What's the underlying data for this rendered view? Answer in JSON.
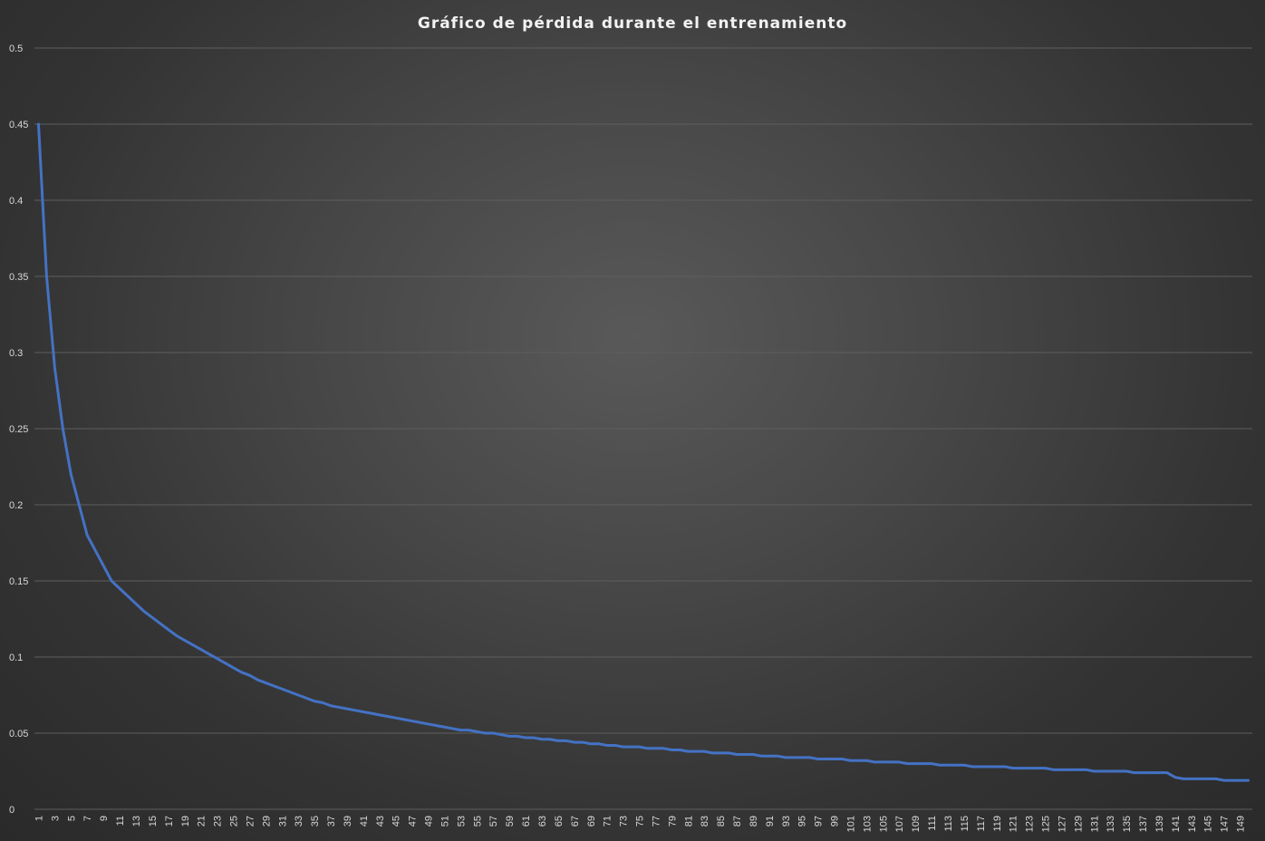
{
  "colors": {
    "series": "#4472c4",
    "grid": "#5e5e5e",
    "text": "#d9d9d9",
    "title": "#f2f2f2"
  },
  "chart_data": {
    "type": "line",
    "title": "Gráfico de pérdida durante el entrenamiento",
    "xlabel": "",
    "ylabel": "",
    "ylim": [
      0,
      0.5
    ],
    "y_ticks": [
      "0",
      "0.05",
      "0.1",
      "0.15",
      "0.2",
      "0.25",
      "0.3",
      "0.35",
      "0.4",
      "0.45",
      "0.5"
    ],
    "x_range": [
      1,
      150
    ],
    "x_tick_step": 2,
    "grid": true,
    "legend": "none",
    "series": [
      {
        "name": "",
        "values": [
          0.45,
          0.35,
          0.29,
          0.25,
          0.22,
          0.2,
          0.18,
          0.17,
          0.16,
          0.15,
          0.145,
          0.14,
          0.135,
          0.13,
          0.126,
          0.122,
          0.118,
          0.114,
          0.111,
          0.108,
          0.105,
          0.102,
          0.099,
          0.096,
          0.093,
          0.09,
          0.088,
          0.085,
          0.083,
          0.081,
          0.079,
          0.077,
          0.075,
          0.073,
          0.071,
          0.07,
          0.068,
          0.067,
          0.066,
          0.065,
          0.064,
          0.063,
          0.062,
          0.061,
          0.06,
          0.059,
          0.058,
          0.057,
          0.056,
          0.055,
          0.054,
          0.053,
          0.052,
          0.052,
          0.051,
          0.05,
          0.05,
          0.049,
          0.048,
          0.048,
          0.047,
          0.047,
          0.046,
          0.046,
          0.045,
          0.045,
          0.044,
          0.044,
          0.043,
          0.043,
          0.042,
          0.042,
          0.041,
          0.041,
          0.041,
          0.04,
          0.04,
          0.04,
          0.039,
          0.039,
          0.038,
          0.038,
          0.038,
          0.037,
          0.037,
          0.037,
          0.036,
          0.036,
          0.036,
          0.035,
          0.035,
          0.035,
          0.034,
          0.034,
          0.034,
          0.034,
          0.033,
          0.033,
          0.033,
          0.033,
          0.032,
          0.032,
          0.032,
          0.031,
          0.031,
          0.031,
          0.031,
          0.03,
          0.03,
          0.03,
          0.03,
          0.029,
          0.029,
          0.029,
          0.029,
          0.028,
          0.028,
          0.028,
          0.028,
          0.028,
          0.027,
          0.027,
          0.027,
          0.027,
          0.027,
          0.026,
          0.026,
          0.026,
          0.026,
          0.026,
          0.025,
          0.025,
          0.025,
          0.025,
          0.025,
          0.024,
          0.024,
          0.024,
          0.024,
          0.024,
          0.021,
          0.02,
          0.02,
          0.02,
          0.02,
          0.02,
          0.019,
          0.019,
          0.019,
          0.019
        ]
      }
    ]
  }
}
